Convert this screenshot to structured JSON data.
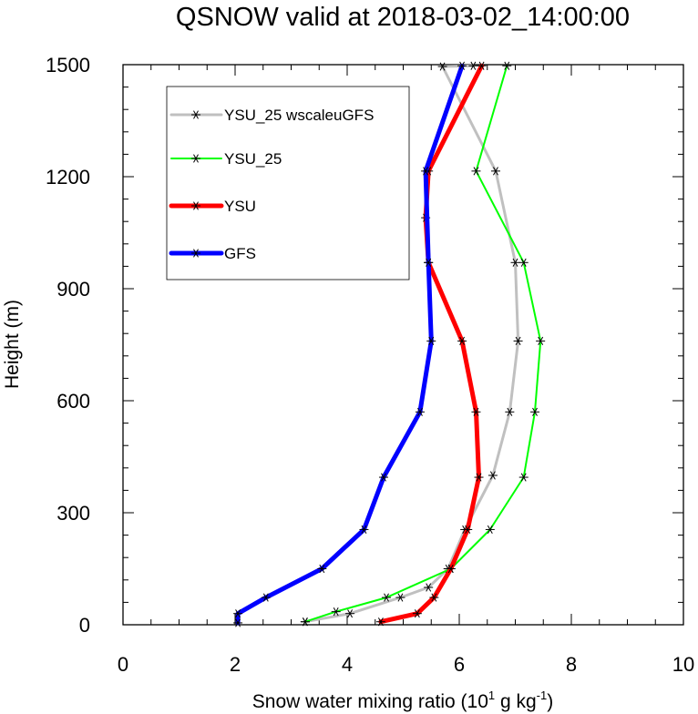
{
  "chart_data": {
    "type": "line",
    "title": "QSNOW valid at 2018-03-02_14:00:00",
    "xlabel": "Snow water mixing ratio (10",
    "xlabel_exponent": "1",
    "xlabel_unit": " g kg",
    "xlabel_unit_exponent": "-1",
    "xlabel_close": ")",
    "ylabel": "Height (m)",
    "xlim": [
      0,
      10
    ],
    "ylim": [
      0,
      1500
    ],
    "xticks": [
      "0",
      "2",
      "4",
      "6",
      "8",
      "10"
    ],
    "yticks": [
      "0",
      "300",
      "600",
      "900",
      "1200",
      "1500"
    ],
    "legend_position": "top-left",
    "series": [
      {
        "name": "YSU_25 wscaleuGFS",
        "color": "#c0c0c0",
        "x": [
          3.25,
          4.05,
          4.95,
          5.45,
          5.8,
          6.1,
          6.6,
          6.9,
          7.05,
          7.0,
          6.65,
          5.7,
          6.25
        ],
        "y": [
          8,
          30,
          73,
          100,
          150,
          255,
          400,
          570,
          760,
          970,
          1215,
          1495,
          1497
        ]
      },
      {
        "name": "YSU_25",
        "color": "#00ff00",
        "x": [
          3.25,
          3.8,
          4.7,
          5.85,
          6.55,
          7.15,
          7.35,
          7.45,
          7.15,
          6.3,
          6.85
        ],
        "y": [
          8,
          35,
          73,
          150,
          255,
          395,
          570,
          760,
          970,
          1215,
          1497
        ]
      },
      {
        "name": "YSU",
        "color": "#ff0000",
        "x": [
          4.6,
          5.25,
          5.55,
          5.85,
          6.15,
          6.35,
          6.3,
          6.05,
          5.45,
          5.4,
          5.45,
          6.4
        ],
        "y": [
          8,
          30,
          73,
          150,
          255,
          395,
          570,
          760,
          970,
          1090,
          1215,
          1497
        ]
      },
      {
        "name": "GFS",
        "color": "#0000ff",
        "x": [
          2.05,
          2.05,
          2.55,
          3.55,
          4.3,
          4.65,
          5.3,
          5.5,
          5.45,
          5.4,
          6.05
        ],
        "y": [
          5,
          30,
          73,
          150,
          255,
          395,
          570,
          760,
          970,
          1215,
          1497
        ]
      }
    ]
  }
}
